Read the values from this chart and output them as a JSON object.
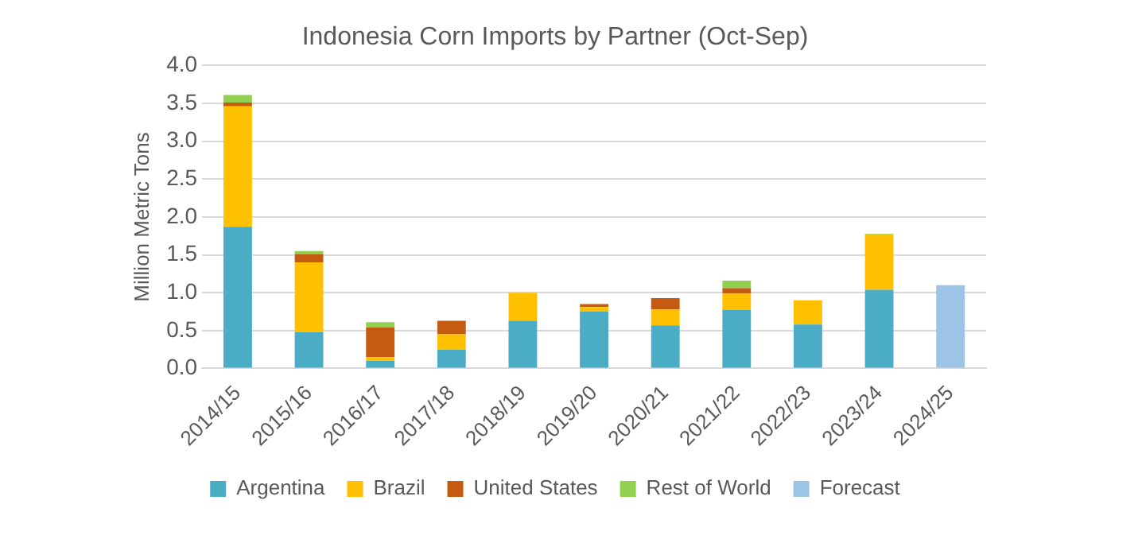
{
  "chart_data": {
    "type": "bar",
    "title": "Indonesia Corn Imports by Partner (Oct-Sep)",
    "ylabel": "Million Metric Tons",
    "categories": [
      "2014/15",
      "2015/16",
      "2016/17",
      "2017/18",
      "2018/19",
      "2019/20",
      "2020/21",
      "2021/22",
      "2022/23",
      "2023/24",
      "2024/25"
    ],
    "stacked": true,
    "grid": "y",
    "legend": "bottom",
    "ylim": [
      0,
      4
    ],
    "yticks": [
      {
        "value": 0,
        "label": "0.0"
      },
      {
        "value": 0.5,
        "label": "0.5"
      },
      {
        "value": 1,
        "label": "1.0"
      },
      {
        "value": 1.5,
        "label": "1.5"
      },
      {
        "value": 2,
        "label": "2.0"
      },
      {
        "value": 2.5,
        "label": "2.5"
      },
      {
        "value": 3,
        "label": "3.0"
      },
      {
        "value": 3.5,
        "label": "3.5"
      },
      {
        "value": 4,
        "label": "4.0"
      }
    ],
    "series": [
      {
        "name": "Argentina",
        "color": "#4bacc6",
        "values": [
          1.87,
          0.48,
          0.1,
          0.25,
          0.63,
          0.75,
          0.57,
          0.77,
          0.58,
          1.04,
          null
        ]
      },
      {
        "name": "Brazil",
        "color": "#ffc000",
        "values": [
          1.59,
          0.92,
          0.05,
          0.2,
          0.37,
          0.06,
          0.21,
          0.22,
          0.32,
          0.73,
          null
        ]
      },
      {
        "name": "United States",
        "color": "#c55a11",
        "values": [
          0.05,
          0.11,
          0.39,
          0.18,
          null,
          0.04,
          0.15,
          0.07,
          null,
          null,
          null
        ]
      },
      {
        "name": "Rest of World",
        "color": "#92d050",
        "values": [
          0.1,
          0.04,
          0.07,
          null,
          null,
          null,
          null,
          0.1,
          null,
          0.01,
          null
        ]
      },
      {
        "name": "Forecast",
        "color": "#9dc3e6",
        "values": [
          null,
          null,
          null,
          null,
          null,
          null,
          null,
          null,
          null,
          null,
          1.1
        ]
      }
    ]
  }
}
